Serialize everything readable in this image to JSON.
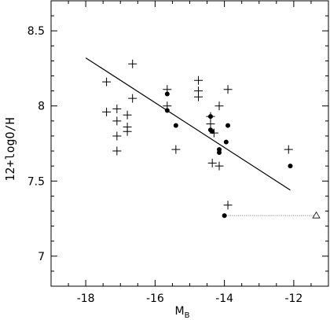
{
  "chart_data": {
    "type": "scatter",
    "title": "",
    "xlabel": "M",
    "xlabel_subscript": "B",
    "ylabel": "12+logO/H",
    "xlim": [
      -19,
      -11
    ],
    "ylim": [
      6.8,
      8.7
    ],
    "xticks": [
      -18,
      -16,
      -14,
      -12
    ],
    "xtick_labels": [
      "-18",
      "-16",
      "-14",
      "-12"
    ],
    "yticks": [
      7.0,
      7.5,
      8.0,
      8.5
    ],
    "ytick_labels": [
      "7",
      "7.5",
      "8",
      "8.5"
    ],
    "grid": false,
    "series": [
      {
        "marker": "plus",
        "points": [
          [
            -17.4,
            8.16
          ],
          [
            -17.4,
            7.96
          ],
          [
            -17.1,
            7.98
          ],
          [
            -17.1,
            7.9
          ],
          [
            -17.1,
            7.8
          ],
          [
            -17.1,
            7.7
          ],
          [
            -16.8,
            7.94
          ],
          [
            -16.8,
            7.86
          ],
          [
            -16.8,
            7.83
          ],
          [
            -16.65,
            8.28
          ],
          [
            -16.65,
            8.05
          ],
          [
            -15.65,
            8.11
          ],
          [
            -15.65,
            8.0
          ],
          [
            -15.4,
            7.71
          ],
          [
            -14.75,
            8.17
          ],
          [
            -14.75,
            8.1
          ],
          [
            -14.75,
            8.06
          ],
          [
            -14.4,
            7.93
          ],
          [
            -14.4,
            7.88
          ],
          [
            -14.3,
            7.82
          ],
          [
            -14.35,
            7.62
          ],
          [
            -14.15,
            8.0
          ],
          [
            -14.15,
            7.6
          ],
          [
            -13.9,
            8.11
          ],
          [
            -13.9,
            7.34
          ],
          [
            -12.15,
            7.71
          ]
        ]
      },
      {
        "marker": "dot",
        "points": [
          [
            -15.65,
            8.08
          ],
          [
            -15.65,
            7.97
          ],
          [
            -15.4,
            7.87
          ],
          [
            -14.4,
            7.93
          ],
          [
            -14.4,
            7.84
          ],
          [
            -14.35,
            7.83
          ],
          [
            -14.15,
            7.71
          ],
          [
            -14.15,
            7.69
          ],
          [
            -13.9,
            7.87
          ],
          [
            -13.95,
            7.76
          ],
          [
            -12.1,
            7.6
          ],
          [
            -14.0,
            7.27
          ]
        ]
      },
      {
        "marker": "open-triangle",
        "points": [
          [
            -11.35,
            7.27
          ]
        ]
      }
    ],
    "fit_line": {
      "x": [
        -18.0,
        -12.1
      ],
      "y": [
        8.32,
        7.44
      ]
    },
    "dotted_segment": {
      "x": [
        -14.0,
        -11.35
      ],
      "y": [
        7.27,
        7.27
      ]
    }
  }
}
